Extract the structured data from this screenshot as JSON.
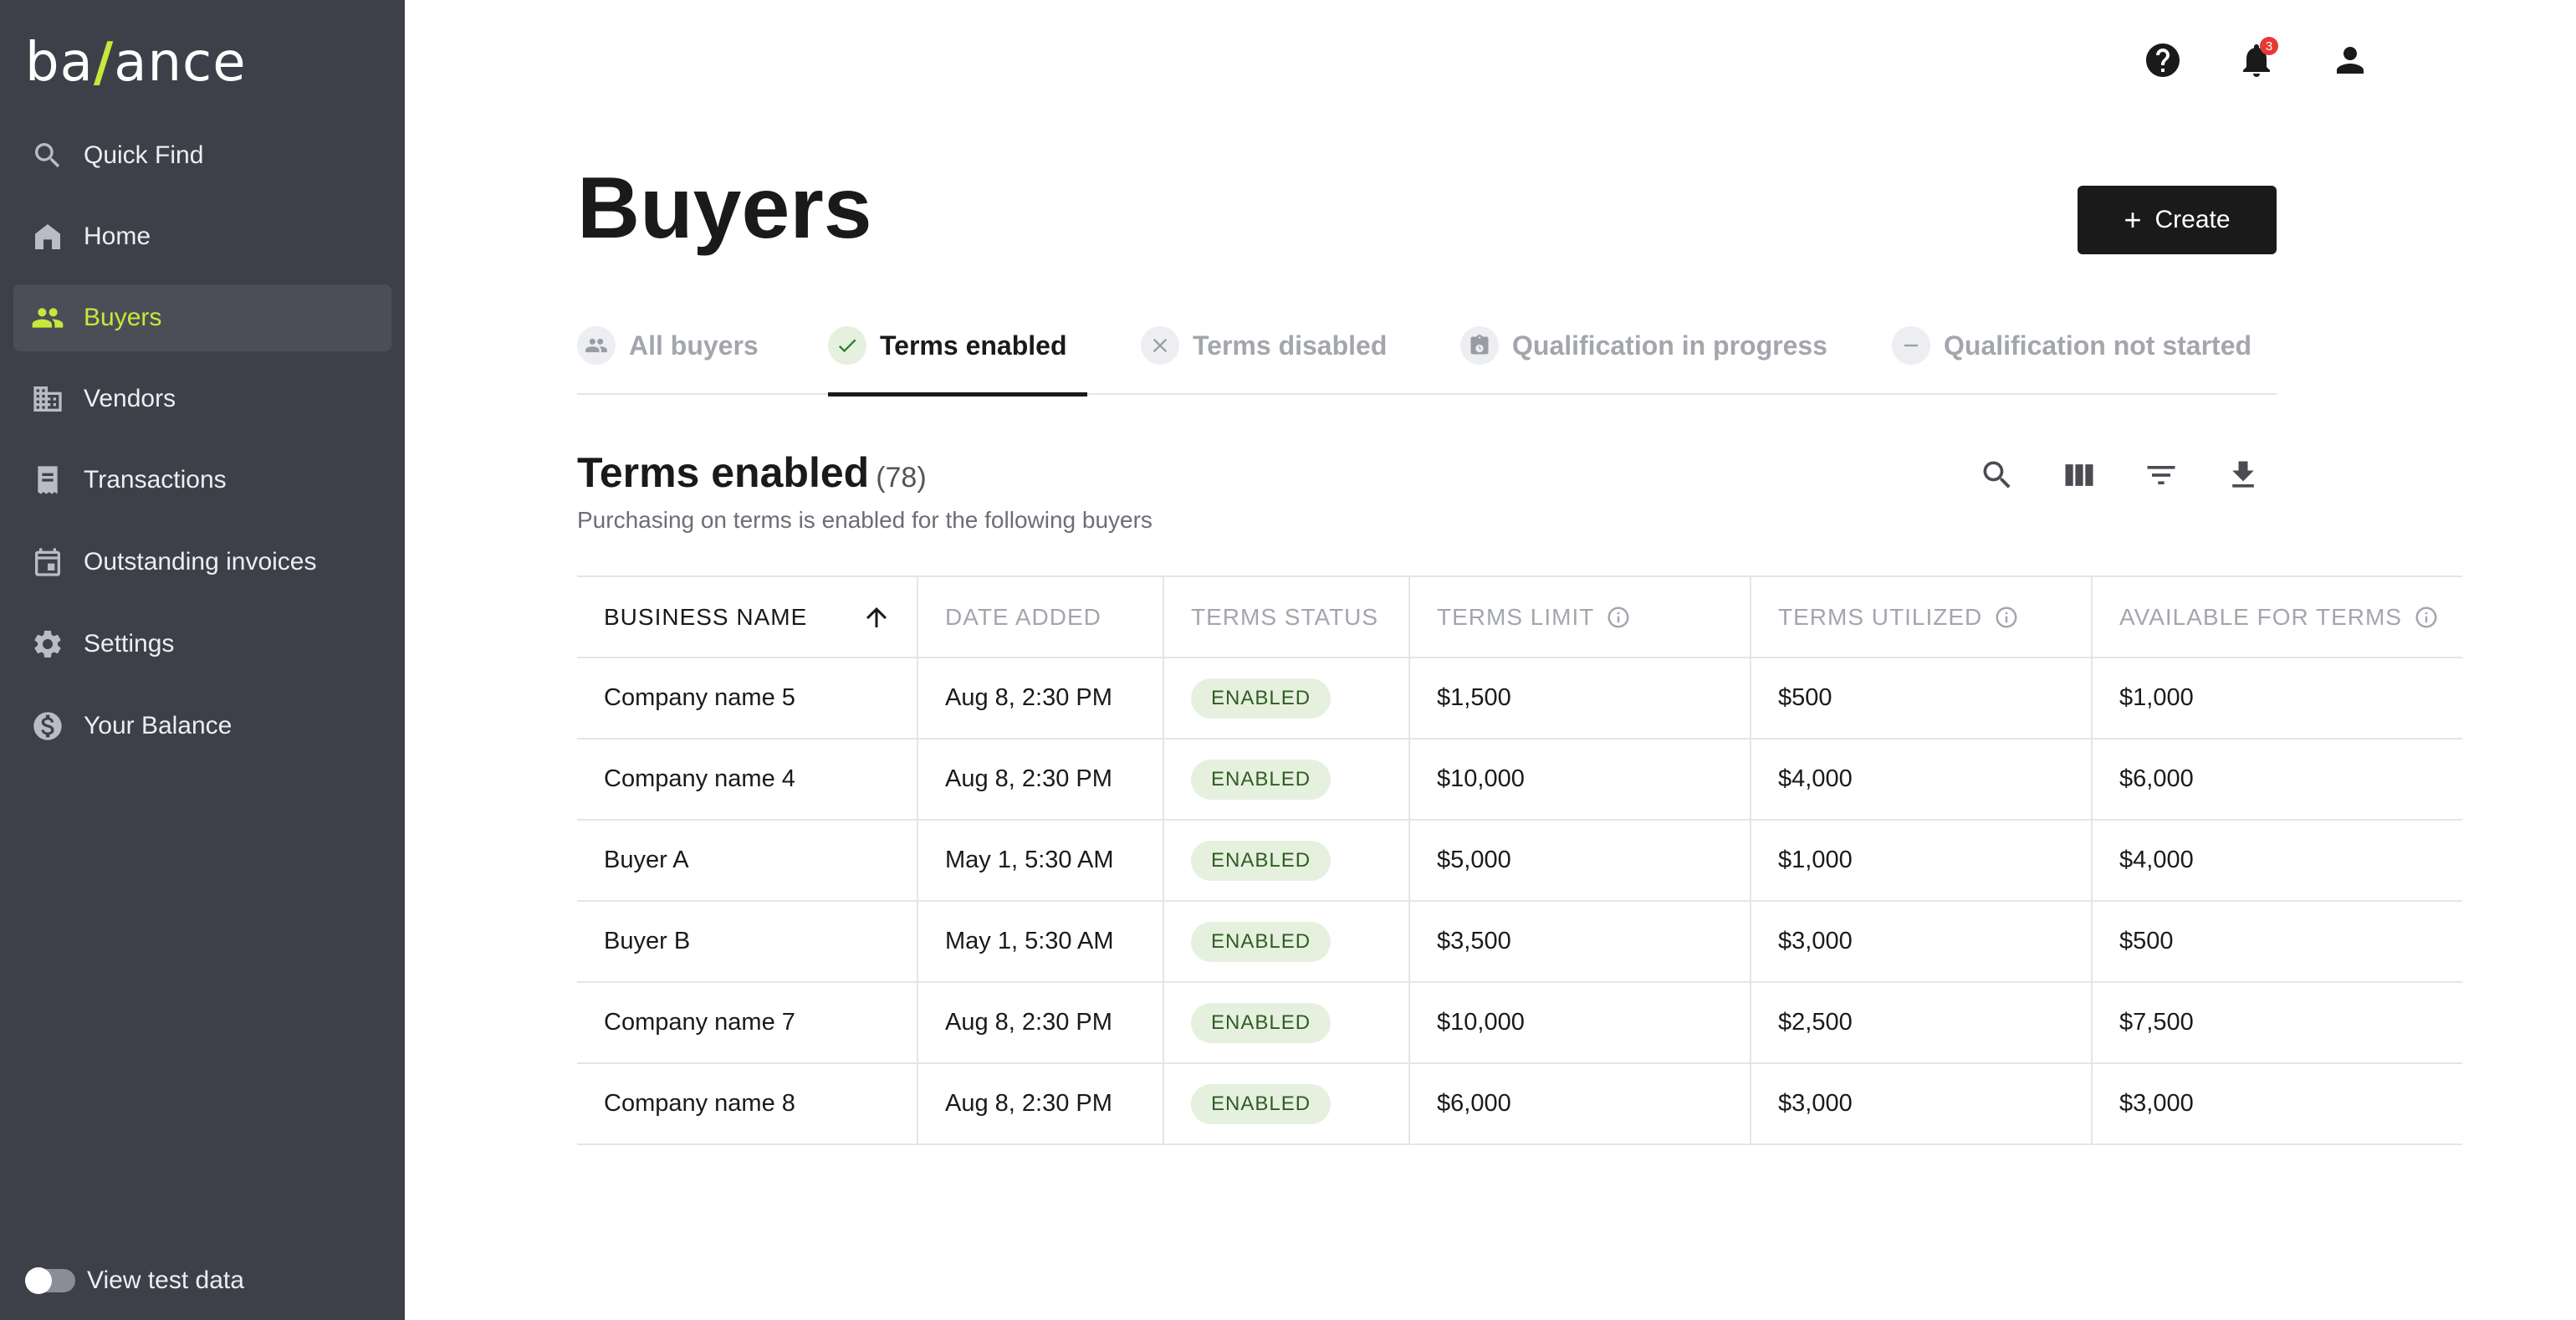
{
  "brand": {
    "logo_pre": "ba",
    "logo_slash": "/",
    "logo_post": "ance",
    "accent_color": "#c7e83a"
  },
  "sidebar": {
    "items": [
      {
        "label": "Quick Find",
        "icon": "search-icon"
      },
      {
        "label": "Home",
        "icon": "home-icon"
      },
      {
        "label": "Buyers",
        "icon": "people-icon",
        "active": true
      },
      {
        "label": "Vendors",
        "icon": "building-icon"
      },
      {
        "label": "Transactions",
        "icon": "receipt-icon"
      },
      {
        "label": "Outstanding invoices",
        "icon": "calendar-icon"
      },
      {
        "label": "Settings",
        "icon": "gear-icon"
      },
      {
        "label": "Your Balance",
        "icon": "dollar-icon"
      }
    ],
    "test_data_label": "View test data"
  },
  "topbar": {
    "notification_count": "3"
  },
  "header": {
    "title": "Buyers",
    "create_label": "Create"
  },
  "tabs": [
    {
      "label": "All buyers",
      "icon": "people-icon"
    },
    {
      "label": "Terms enabled",
      "icon": "check-icon",
      "active": true
    },
    {
      "label": "Terms disabled",
      "icon": "close-icon"
    },
    {
      "label": "Qualification in progress",
      "icon": "clipboard-icon"
    },
    {
      "label": "Qualification not started",
      "icon": "minus-icon"
    }
  ],
  "section": {
    "title": "Terms enabled",
    "count": "(78)",
    "subtitle": "Purchasing on terms is enabled for the following buyers"
  },
  "table": {
    "columns": [
      "BUSINESS NAME",
      "DATE ADDED",
      "TERMS STATUS",
      "TERMS LIMIT",
      "TERMS UTILIZED",
      "AVAILABLE FOR TERMS"
    ],
    "rows": [
      [
        "Company name 5",
        "Aug 8, 2:30 PM",
        "ENABLED",
        "$1,500",
        "$500",
        "$1,000"
      ],
      [
        "Company name 4",
        "Aug 8, 2:30 PM",
        "ENABLED",
        "$10,000",
        "$4,000",
        "$6,000"
      ],
      [
        "Buyer A",
        "May 1, 5:30 AM",
        "ENABLED",
        "$5,000",
        "$1,000",
        "$4,000"
      ],
      [
        "Buyer B",
        "May 1, 5:30 AM",
        "ENABLED",
        "$3,500",
        "$3,000",
        "$500"
      ],
      [
        "Company name 7",
        "Aug 8, 2:30 PM",
        "ENABLED",
        "$10,000",
        "$2,500",
        "$7,500"
      ],
      [
        "Company name 8",
        "Aug 8, 2:30 PM",
        "ENABLED",
        "$6,000",
        "$3,000",
        "$3,000"
      ]
    ]
  }
}
